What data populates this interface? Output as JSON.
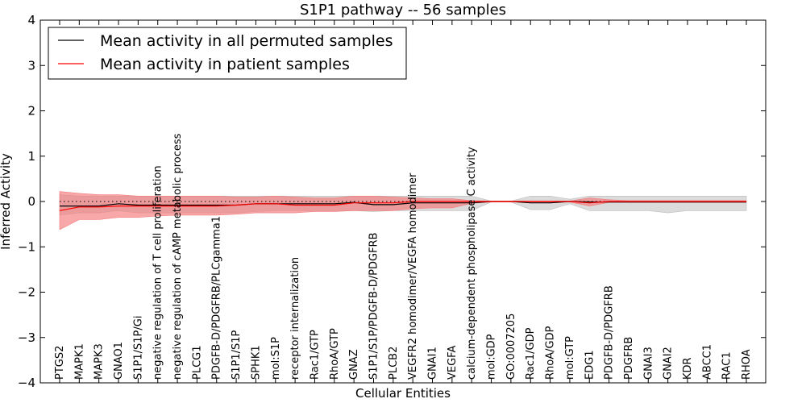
{
  "chart_data": {
    "type": "line",
    "title": "S1P1 pathway -- 56 samples",
    "xlabel": "Cellular Entities",
    "ylabel": "Inferred Activity",
    "ylim": [
      -4,
      4
    ],
    "yticks": [
      4,
      3,
      2,
      1,
      0,
      -1,
      -2,
      -3,
      -4
    ],
    "ytick_labels": [
      "4",
      "3",
      "2",
      "1",
      "0",
      "−1",
      "−2",
      "−3",
      "−4"
    ],
    "categories": [
      "PTGS2",
      "MAPK1",
      "MAPK3",
      "GNAO1",
      "S1P1/S1P/Gi",
      "negative regulation of T cell proliferation",
      "negative regulation of cAMP metabolic process",
      "PLCG1",
      "PDGFB-D/PDGFRB/PLCgamma1",
      "S1P1/S1P",
      "SPHK1",
      "mol:S1P",
      "receptor internalization",
      "Rac1/GTP",
      "RhoA/GTP",
      "GNAZ",
      "S1P1/S1P/PDGFB-D/PDGFRB",
      "PLCB2",
      "VEGFR2 homodimer/VEGFA homodimer",
      "GNAI1",
      "VEGFA",
      "calcium-dependent phospholipase C activity",
      "mol:GDP",
      "GO:0007205",
      "Rac1/GDP",
      "RhoA/GDP",
      "mol:GTP",
      "EDG1",
      "PDGFB-D/PDGFRB",
      "PDGFRB",
      "GNAI3",
      "GNAI2",
      "KDR",
      "ABCC1",
      "RAC1",
      "RHOA"
    ],
    "legend_position": "top-left",
    "zero_reference_line": "dotted",
    "series": [
      {
        "name": "Mean activity in all permuted samples",
        "color": "#000000",
        "band_color": "#bdbdbd",
        "values": [
          -0.1,
          -0.1,
          -0.1,
          -0.05,
          -0.08,
          -0.08,
          -0.08,
          -0.08,
          -0.08,
          -0.08,
          -0.05,
          -0.05,
          -0.05,
          -0.05,
          -0.05,
          -0.02,
          -0.07,
          -0.07,
          -0.03,
          -0.03,
          -0.03,
          -0.03,
          0.0,
          0.0,
          -0.03,
          -0.03,
          0.0,
          -0.01,
          -0.01,
          -0.01,
          -0.01,
          -0.01,
          -0.01,
          -0.01,
          -0.01,
          -0.01
        ],
        "band_upper": [
          0.15,
          0.12,
          0.12,
          0.12,
          0.12,
          0.12,
          0.12,
          0.12,
          0.12,
          0.12,
          0.12,
          0.12,
          0.12,
          0.12,
          0.12,
          0.12,
          0.12,
          0.12,
          0.12,
          0.12,
          0.12,
          0.12,
          0.01,
          0.01,
          0.12,
          0.12,
          0.05,
          0.12,
          0.12,
          0.12,
          0.12,
          0.12,
          0.12,
          0.12,
          0.12,
          0.12
        ],
        "band_lower": [
          -0.3,
          -0.25,
          -0.25,
          -0.2,
          -0.25,
          -0.25,
          -0.25,
          -0.25,
          -0.25,
          -0.25,
          -0.22,
          -0.2,
          -0.2,
          -0.2,
          -0.2,
          -0.2,
          -0.22,
          -0.2,
          -0.2,
          -0.2,
          -0.2,
          -0.2,
          -0.01,
          -0.01,
          -0.18,
          -0.18,
          -0.05,
          -0.2,
          -0.2,
          -0.2,
          -0.2,
          -0.25,
          -0.2,
          -0.2,
          -0.2,
          -0.2
        ]
      },
      {
        "name": "Mean activity in patient samples",
        "color": "#ff0000",
        "band_color": "#f47a7a",
        "values": [
          -0.2,
          -0.12,
          -0.12,
          -0.1,
          -0.1,
          -0.1,
          -0.1,
          -0.1,
          -0.1,
          -0.08,
          -0.05,
          -0.05,
          -0.08,
          -0.08,
          -0.08,
          -0.03,
          -0.03,
          -0.03,
          0.0,
          0.0,
          0.0,
          0.0,
          0.0,
          0.0,
          0.0,
          0.0,
          0.0,
          -0.03,
          0.0,
          0.0,
          0.0,
          0.0,
          0.0,
          0.0,
          0.0,
          0.0
        ],
        "band_upper": [
          0.22,
          0.18,
          0.15,
          0.15,
          0.12,
          0.12,
          0.12,
          0.12,
          0.12,
          0.1,
          0.1,
          0.12,
          0.1,
          0.08,
          0.08,
          0.12,
          0.12,
          0.1,
          0.08,
          0.06,
          0.06,
          0.02,
          0.01,
          0.01,
          0.01,
          0.01,
          0.01,
          0.08,
          0.04,
          0.02,
          0.02,
          0.02,
          0.02,
          0.02,
          0.02,
          0.02
        ],
        "band_lower": [
          -0.62,
          -0.4,
          -0.4,
          -0.35,
          -0.35,
          -0.32,
          -0.3,
          -0.3,
          -0.3,
          -0.28,
          -0.25,
          -0.25,
          -0.25,
          -0.22,
          -0.22,
          -0.2,
          -0.2,
          -0.2,
          -0.16,
          -0.14,
          -0.14,
          -0.04,
          -0.01,
          -0.01,
          -0.01,
          -0.01,
          -0.01,
          -0.1,
          -0.02,
          -0.02,
          -0.02,
          -0.02,
          -0.02,
          -0.02,
          -0.02,
          -0.02
        ]
      }
    ]
  }
}
